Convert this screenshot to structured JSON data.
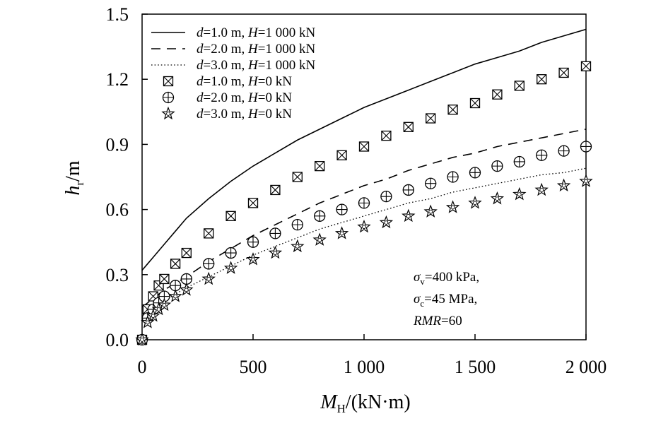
{
  "chart_data": {
    "type": "line",
    "xlabel": {
      "main": "M",
      "sub": "H",
      "rest": "/(kN·m)"
    },
    "ylabel": {
      "main": "h",
      "sub": "r",
      "rest": "/m"
    },
    "xlim": [
      0,
      2000
    ],
    "ylim": [
      0,
      1.5
    ],
    "x_ticks": [
      0,
      500,
      1000,
      1500,
      2000
    ],
    "x_tick_labels": [
      "0",
      "500",
      "1 000",
      "1 500",
      "2 000"
    ],
    "y_ticks": [
      0,
      0.3,
      0.6,
      0.9,
      1.2,
      1.5
    ],
    "y_tick_labels": [
      "0.0",
      "0.3",
      "0.6",
      "0.9",
      "1.2",
      "1.5"
    ],
    "grid": false,
    "legend_position": "top-left",
    "series": [
      {
        "name": "d=1.0 m, H=1 000 kN",
        "legend": {
          "v1": "d",
          "t1": "=1.0 m, ",
          "v2": "H",
          "t2": "=1 000 kN"
        },
        "style": "solid",
        "x": [
          0,
          25,
          50,
          100,
          150,
          200,
          300,
          400,
          500,
          600,
          700,
          800,
          900,
          1000,
          1100,
          1200,
          1300,
          1400,
          1500,
          1600,
          1700,
          1800,
          1900,
          2000
        ],
        "y": [
          0.32,
          0.35,
          0.38,
          0.44,
          0.5,
          0.56,
          0.65,
          0.73,
          0.8,
          0.86,
          0.92,
          0.97,
          1.02,
          1.07,
          1.11,
          1.15,
          1.19,
          1.23,
          1.27,
          1.3,
          1.33,
          1.37,
          1.4,
          1.43
        ]
      },
      {
        "name": "d=2.0 m, H=1 000 kN",
        "legend": {
          "v1": "d",
          "t1": "=2.0 m, ",
          "v2": "H",
          "t2": "=1 000 kN"
        },
        "style": "dashed",
        "x": [
          0,
          25,
          50,
          100,
          150,
          200,
          300,
          400,
          500,
          600,
          700,
          800,
          900,
          1000,
          1100,
          1200,
          1300,
          1400,
          1500,
          1600,
          1700,
          1800,
          1900,
          2000
        ],
        "y": [
          0.15,
          0.17,
          0.19,
          0.23,
          0.26,
          0.29,
          0.36,
          0.42,
          0.48,
          0.53,
          0.58,
          0.63,
          0.67,
          0.71,
          0.74,
          0.78,
          0.81,
          0.84,
          0.86,
          0.89,
          0.91,
          0.93,
          0.95,
          0.97
        ]
      },
      {
        "name": "d=3.0 m, H=1 000 kN",
        "legend": {
          "v1": "d",
          "t1": "=3.0 m, ",
          "v2": "H",
          "t2": "=1 000 kN"
        },
        "style": "dotted",
        "x": [
          0,
          25,
          50,
          100,
          150,
          200,
          300,
          400,
          500,
          600,
          700,
          800,
          900,
          1000,
          1100,
          1200,
          1300,
          1400,
          1500,
          1600,
          1700,
          1800,
          1900,
          2000
        ],
        "y": [
          0.1,
          0.12,
          0.14,
          0.18,
          0.21,
          0.24,
          0.29,
          0.34,
          0.39,
          0.43,
          0.47,
          0.51,
          0.54,
          0.57,
          0.6,
          0.63,
          0.65,
          0.68,
          0.7,
          0.72,
          0.74,
          0.76,
          0.77,
          0.79
        ]
      },
      {
        "name": "d=1.0 m, H=0 kN",
        "legend": {
          "v1": "d",
          "t1": "=1.0 m, ",
          "v2": "H",
          "t2": "=0 kN"
        },
        "style": "marker-boxx",
        "x": [
          0,
          25,
          50,
          75,
          100,
          150,
          200,
          300,
          400,
          500,
          600,
          700,
          800,
          900,
          1000,
          1100,
          1200,
          1300,
          1400,
          1500,
          1600,
          1700,
          1800,
          1900,
          2000
        ],
        "y": [
          0.0,
          0.14,
          0.2,
          0.25,
          0.28,
          0.35,
          0.4,
          0.49,
          0.57,
          0.63,
          0.69,
          0.75,
          0.8,
          0.85,
          0.89,
          0.94,
          0.98,
          1.02,
          1.06,
          1.09,
          1.13,
          1.17,
          1.2,
          1.23,
          1.26
        ]
      },
      {
        "name": "d=2.0 m, H=0 kN",
        "legend": {
          "v1": "d",
          "t1": "=2.0 m, ",
          "v2": "H",
          "t2": "=0 kN"
        },
        "style": "marker-circleplus",
        "x": [
          0,
          25,
          50,
          75,
          100,
          150,
          200,
          300,
          400,
          500,
          600,
          700,
          800,
          900,
          1000,
          1100,
          1200,
          1300,
          1400,
          1500,
          1600,
          1700,
          1800,
          1900,
          2000
        ],
        "y": [
          0.0,
          0.1,
          0.14,
          0.17,
          0.2,
          0.25,
          0.28,
          0.35,
          0.4,
          0.45,
          0.49,
          0.53,
          0.57,
          0.6,
          0.63,
          0.66,
          0.69,
          0.72,
          0.75,
          0.77,
          0.8,
          0.82,
          0.85,
          0.87,
          0.89
        ]
      },
      {
        "name": "d=3.0 m, H=0 kN",
        "legend": {
          "v1": "d",
          "t1": "=3.0 m, ",
          "v2": "H",
          "t2": "=0 kN"
        },
        "style": "marker-star",
        "x": [
          0,
          25,
          50,
          75,
          100,
          150,
          200,
          300,
          400,
          500,
          600,
          700,
          800,
          900,
          1000,
          1100,
          1200,
          1300,
          1400,
          1500,
          1600,
          1700,
          1800,
          1900,
          2000
        ],
        "y": [
          0.0,
          0.08,
          0.11,
          0.14,
          0.16,
          0.2,
          0.23,
          0.28,
          0.33,
          0.37,
          0.4,
          0.43,
          0.46,
          0.49,
          0.52,
          0.54,
          0.57,
          0.59,
          0.61,
          0.63,
          0.65,
          0.67,
          0.69,
          0.71,
          0.73
        ]
      }
    ],
    "annotations": [
      {
        "var": "σ",
        "sub": "v",
        "text": "=400 kPa,"
      },
      {
        "var": "σ",
        "sub": "c",
        "text": "=45 MPa,"
      },
      {
        "var": "RMR",
        "sub": "",
        "text": "=60"
      }
    ]
  }
}
